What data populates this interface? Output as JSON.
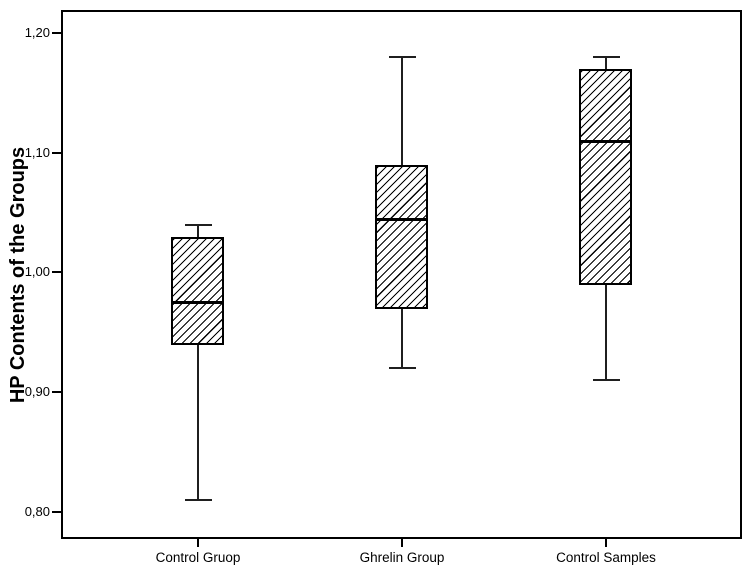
{
  "chart_data": {
    "type": "boxplot",
    "title": "",
    "ylabel": "HP Contents of the Groups",
    "xlabel": "",
    "categories": [
      "Control Gruop",
      "Ghrelin Group",
      "Control Samples"
    ],
    "y_ticks": [
      {
        "label": "1,20",
        "value": 1.2
      },
      {
        "label": "1,10",
        "value": 1.1
      },
      {
        "label": "1,00",
        "value": 1.0
      },
      {
        "label": "0,90",
        "value": 0.9
      },
      {
        "label": "0,80",
        "value": 0.8
      }
    ],
    "ylim": [
      0.78,
      1.22
    ],
    "grid": false,
    "legend": false,
    "decimal_separator": ",",
    "series": [
      {
        "name": "Control Gruop",
        "min": 0.81,
        "q1": 0.94,
        "median": 0.975,
        "q3": 1.03,
        "max": 1.04
      },
      {
        "name": "Ghrelin Group",
        "min": 0.92,
        "q1": 0.97,
        "median": 1.045,
        "q3": 1.09,
        "max": 1.18
      },
      {
        "name": "Control Samples",
        "min": 0.91,
        "q1": 0.99,
        "median": 1.11,
        "q3": 1.17,
        "max": 1.18
      }
    ],
    "style": {
      "stroke": "#000000",
      "box_fill": "#ffffff",
      "hatch_color": "#000000",
      "hatch_pattern": "diagonal-forward",
      "background": "#ffffff"
    }
  }
}
